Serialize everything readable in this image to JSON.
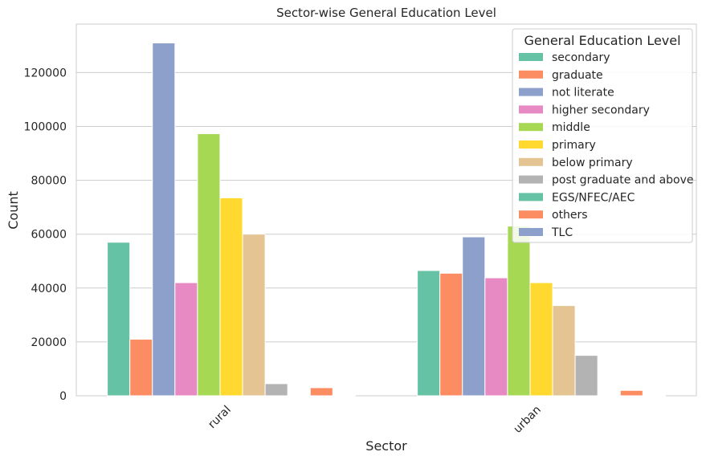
{
  "chart_data": {
    "type": "bar",
    "title": "Sector-wise General Education Level",
    "xlabel": "Sector",
    "ylabel": "Count",
    "categories": [
      "rural",
      "urban"
    ],
    "ylim": [
      0,
      138000
    ],
    "yticks": [
      0,
      20000,
      40000,
      60000,
      80000,
      100000,
      120000
    ],
    "grid": "horizontal",
    "legend": {
      "title": "General Education Level",
      "placement": "top-right"
    },
    "series": [
      {
        "name": "secondary",
        "values": [
          57000,
          46500
        ],
        "color": "#66c2a5"
      },
      {
        "name": "graduate",
        "values": [
          21000,
          45500
        ],
        "color": "#fc8d62"
      },
      {
        "name": "not literate",
        "values": [
          131000,
          59000
        ],
        "color": "#8da0cb"
      },
      {
        "name": "higher secondary",
        "values": [
          42000,
          43800
        ],
        "color": "#e78ac3"
      },
      {
        "name": "middle",
        "values": [
          97300,
          63000
        ],
        "color": "#a6d854"
      },
      {
        "name": "primary",
        "values": [
          73500,
          42000
        ],
        "color": "#ffd92f"
      },
      {
        "name": "below primary",
        "values": [
          60000,
          33500
        ],
        "color": "#e5c494"
      },
      {
        "name": "post graduate and above",
        "values": [
          4500,
          15000
        ],
        "color": "#b3b3b3"
      },
      {
        "name": "EGS/NFEC/AEC",
        "values": [
          200,
          300
        ],
        "color": "#66c2a5"
      },
      {
        "name": "others",
        "values": [
          3000,
          2000
        ],
        "color": "#fc8d62"
      },
      {
        "name": "TLC",
        "values": [
          100,
          100
        ],
        "color": "#8da0cb"
      }
    ]
  }
}
